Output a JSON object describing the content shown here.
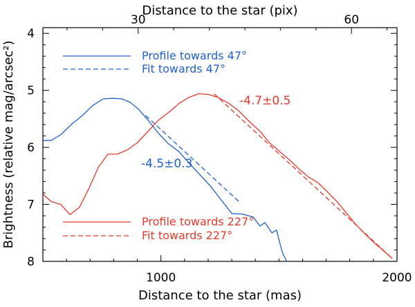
{
  "chart_data": {
    "type": "line",
    "xlabel": "Distance to the star (mas)",
    "ylabel": "Brightness (relative mag/arcsec²)",
    "top_xlabel": "Distance to the star (pix)",
    "xlim": [
      500,
      2000
    ],
    "ylim": [
      8.0,
      3.9
    ],
    "top_xlim_pix": [
      16.6,
      66.4
    ],
    "xticks": [
      1000,
      2000
    ],
    "xtick_labels": [
      "1000",
      "2000"
    ],
    "top_ticks_pix": [
      30,
      60
    ],
    "top_tick_labels": [
      "30",
      "60"
    ],
    "yticks": [
      4,
      5,
      6,
      7,
      8
    ],
    "ytick_labels": [
      "4",
      "5",
      "6",
      "7",
      "8"
    ],
    "grid": false,
    "legend_position": "top-left (blue) and bottom-left (red)",
    "colors": {
      "blue": "#1f5fd0",
      "red": "#e8382a",
      "axes": "#000000"
    },
    "legend": [
      {
        "label": "Profile towards 47°",
        "color": "#1f5fd0",
        "style": "solid"
      },
      {
        "label": "Fit towards 47°",
        "color": "#1f5fd0",
        "style": "dashed"
      },
      {
        "label": "Profile towards 227°",
        "color": "#e8382a",
        "style": "solid"
      },
      {
        "label": "Fit towards 227°",
        "color": "#e8382a",
        "style": "dashed"
      }
    ],
    "annotations": [
      {
        "text": "-4.5±0.3",
        "color": "#1f5fd0"
      },
      {
        "text": "-4.7±0.5",
        "color": "#e8382a"
      }
    ],
    "series": [
      {
        "name": "Profile towards 47°",
        "color": "#1f5fd0",
        "style": "solid",
        "x": [
          500,
          535,
          575,
          620,
          665,
          710,
          755,
          795,
          835,
          870,
          905,
          945,
          985,
          1030,
          1075,
          1120,
          1165,
          1210,
          1255,
          1300,
          1345,
          1390,
          1420,
          1440,
          1470,
          1490,
          1500,
          1515,
          1535
        ],
        "y": [
          5.88,
          5.88,
          5.78,
          5.6,
          5.45,
          5.27,
          5.15,
          5.14,
          5.15,
          5.21,
          5.33,
          5.52,
          5.73,
          5.93,
          6.07,
          6.28,
          6.48,
          6.68,
          6.92,
          7.16,
          7.17,
          7.22,
          7.38,
          7.32,
          7.5,
          7.45,
          7.62,
          7.85,
          8.02
        ]
      },
      {
        "name": "Fit towards 47°",
        "color": "#1f5fd0",
        "style": "dashed",
        "x": [
          935,
          1330
        ],
        "y": [
          5.44,
          6.95
        ]
      },
      {
        "name": "Profile towards 227°",
        "color": "#e8382a",
        "style": "solid",
        "x": [
          500,
          535,
          575,
          615,
          655,
          695,
          735,
          775,
          815,
          860,
          900,
          945,
          990,
          1035,
          1080,
          1120,
          1160,
          1200,
          1240,
          1285,
          1330,
          1375,
          1420,
          1460,
          1505,
          1545,
          1585,
          1625,
          1665,
          1705,
          1745,
          1785,
          1825,
          1865,
          1905,
          1945,
          1980
        ],
        "y": [
          6.82,
          6.95,
          7.0,
          7.18,
          7.05,
          6.72,
          6.35,
          6.12,
          6.12,
          6.04,
          5.92,
          5.72,
          5.52,
          5.38,
          5.22,
          5.12,
          5.06,
          5.07,
          5.12,
          5.22,
          5.36,
          5.55,
          5.72,
          5.92,
          6.08,
          6.22,
          6.38,
          6.52,
          6.62,
          6.78,
          6.95,
          7.15,
          7.35,
          7.52,
          7.68,
          7.82,
          7.95
        ]
      },
      {
        "name": "Fit towards 227°",
        "color": "#e8382a",
        "style": "dashed",
        "x": [
          1225,
          1980
        ],
        "y": [
          5.06,
          7.95
        ]
      }
    ]
  }
}
